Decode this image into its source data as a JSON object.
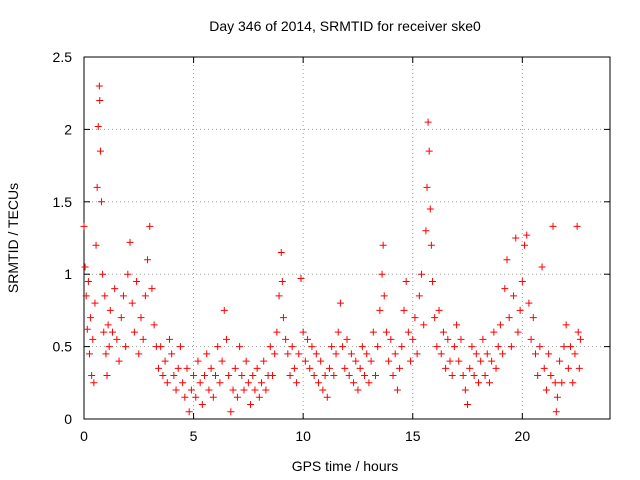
{
  "chart_data": {
    "type": "scatter",
    "title": "Day 346 of 2014, SRMTID for receiver ske0",
    "xlabel": "GPS time / hours",
    "ylabel": "SRMTID / TECUs",
    "xlim": [
      0,
      24
    ],
    "ylim": [
      0,
      2.5
    ],
    "xticks": [
      0,
      5,
      10,
      15,
      20
    ],
    "xtick_labels": [
      "0",
      "5",
      "10",
      "15",
      "20"
    ],
    "yticks": [
      0,
      0.5,
      1,
      1.5,
      2,
      2.5
    ],
    "ytick_labels": [
      "0",
      "0.5",
      "1",
      "1.5",
      "2",
      "2.5"
    ],
    "grid": true,
    "marker": "+",
    "series": [
      {
        "name": "SRMTID",
        "color": "#ff0000",
        "points": [
          [
            0.0,
            1.33
          ],
          [
            0.05,
            1.05
          ],
          [
            0.1,
            0.85
          ],
          [
            0.15,
            0.62
          ],
          [
            0.2,
            0.95
          ],
          [
            0.25,
            0.45
          ],
          [
            0.3,
            0.7
          ],
          [
            0.35,
            0.3
          ],
          [
            0.4,
            0.55
          ],
          [
            0.45,
            0.25
          ],
          [
            0.5,
            0.8
          ],
          [
            0.55,
            1.2
          ],
          [
            0.6,
            1.6
          ],
          [
            0.65,
            2.02
          ],
          [
            0.7,
            2.3
          ],
          [
            0.72,
            2.2
          ],
          [
            0.75,
            1.85
          ],
          [
            0.8,
            1.5
          ],
          [
            0.85,
            1.0
          ],
          [
            0.9,
            0.6
          ],
          [
            0.95,
            0.85
          ],
          [
            1.0,
            0.45
          ],
          [
            1.05,
            0.3
          ],
          [
            1.1,
            0.65
          ],
          [
            1.15,
            0.5
          ],
          [
            1.2,
            0.75
          ],
          [
            1.3,
            0.6
          ],
          [
            1.4,
            0.9
          ],
          [
            1.5,
            0.55
          ],
          [
            1.6,
            0.4
          ],
          [
            1.7,
            0.7
          ],
          [
            1.8,
            0.85
          ],
          [
            1.9,
            0.5
          ],
          [
            2.0,
            1.0
          ],
          [
            2.1,
            1.22
          ],
          [
            2.2,
            0.8
          ],
          [
            2.3,
            0.6
          ],
          [
            2.4,
            0.95
          ],
          [
            2.5,
            0.45
          ],
          [
            2.6,
            0.7
          ],
          [
            2.7,
            0.55
          ],
          [
            2.8,
            0.85
          ],
          [
            2.9,
            1.1
          ],
          [
            3.0,
            1.33
          ],
          [
            3.1,
            0.9
          ],
          [
            3.2,
            0.65
          ],
          [
            3.3,
            0.5
          ],
          [
            3.4,
            0.35
          ],
          [
            3.5,
            0.5
          ],
          [
            3.6,
            0.3
          ],
          [
            3.7,
            0.4
          ],
          [
            3.8,
            0.25
          ],
          [
            3.9,
            0.55
          ],
          [
            4.0,
            0.45
          ],
          [
            4.1,
            0.3
          ],
          [
            4.2,
            0.2
          ],
          [
            4.3,
            0.35
          ],
          [
            4.4,
            0.5
          ],
          [
            4.5,
            0.25
          ],
          [
            4.6,
            0.15
          ],
          [
            4.7,
            0.35
          ],
          [
            4.8,
            0.05
          ],
          [
            4.9,
            0.2
          ],
          [
            5.0,
            0.3
          ],
          [
            5.1,
            0.15
          ],
          [
            5.2,
            0.4
          ],
          [
            5.3,
            0.25
          ],
          [
            5.4,
            0.1
          ],
          [
            5.5,
            0.3
          ],
          [
            5.6,
            0.45
          ],
          [
            5.7,
            0.2
          ],
          [
            5.8,
            0.35
          ],
          [
            5.9,
            0.15
          ],
          [
            6.0,
            0.3
          ],
          [
            6.1,
            0.5
          ],
          [
            6.2,
            0.25
          ],
          [
            6.3,
            0.4
          ],
          [
            6.4,
            0.75
          ],
          [
            6.5,
            0.55
          ],
          [
            6.6,
            0.3
          ],
          [
            6.7,
            0.05
          ],
          [
            6.8,
            0.2
          ],
          [
            6.9,
            0.35
          ],
          [
            7.0,
            0.15
          ],
          [
            7.1,
            0.5
          ],
          [
            7.2,
            0.3
          ],
          [
            7.3,
            0.2
          ],
          [
            7.4,
            0.4
          ],
          [
            7.5,
            0.25
          ],
          [
            7.6,
            0.1
          ],
          [
            7.7,
            0.3
          ],
          [
            7.8,
            0.2
          ],
          [
            7.9,
            0.35
          ],
          [
            8.0,
            0.15
          ],
          [
            8.1,
            0.25
          ],
          [
            8.2,
            0.4
          ],
          [
            8.3,
            0.2
          ],
          [
            8.4,
            0.3
          ],
          [
            8.5,
            0.5
          ],
          [
            8.6,
            0.3
          ],
          [
            8.7,
            0.45
          ],
          [
            8.8,
            0.6
          ],
          [
            8.9,
            0.85
          ],
          [
            9.0,
            1.15
          ],
          [
            9.05,
            0.95
          ],
          [
            9.1,
            0.7
          ],
          [
            9.2,
            0.55
          ],
          [
            9.3,
            0.45
          ],
          [
            9.4,
            0.3
          ],
          [
            9.5,
            0.5
          ],
          [
            9.6,
            0.35
          ],
          [
            9.7,
            0.25
          ],
          [
            9.8,
            0.45
          ],
          [
            9.9,
            0.97
          ],
          [
            10.0,
            0.6
          ],
          [
            10.1,
            0.4
          ],
          [
            10.2,
            0.55
          ],
          [
            10.3,
            0.35
          ],
          [
            10.4,
            0.5
          ],
          [
            10.5,
            0.3
          ],
          [
            10.6,
            0.45
          ],
          [
            10.7,
            0.25
          ],
          [
            10.8,
            0.4
          ],
          [
            10.9,
            0.2
          ],
          [
            11.0,
            0.3
          ],
          [
            11.1,
            0.15
          ],
          [
            11.2,
            0.35
          ],
          [
            11.3,
            0.5
          ],
          [
            11.4,
            0.3
          ],
          [
            11.5,
            0.45
          ],
          [
            11.6,
            0.6
          ],
          [
            11.7,
            0.8
          ],
          [
            11.8,
            0.5
          ],
          [
            11.9,
            0.35
          ],
          [
            12.0,
            0.55
          ],
          [
            12.1,
            0.3
          ],
          [
            12.2,
            0.45
          ],
          [
            12.3,
            0.25
          ],
          [
            12.4,
            0.4
          ],
          [
            12.5,
            0.2
          ],
          [
            12.6,
            0.35
          ],
          [
            12.7,
            0.5
          ],
          [
            12.8,
            0.3
          ],
          [
            12.9,
            0.45
          ],
          [
            13.0,
            0.25
          ],
          [
            13.1,
            0.4
          ],
          [
            13.2,
            0.6
          ],
          [
            13.3,
            0.3
          ],
          [
            13.4,
            0.5
          ],
          [
            13.5,
            0.75
          ],
          [
            13.6,
            1.0
          ],
          [
            13.65,
            1.2
          ],
          [
            13.7,
            0.85
          ],
          [
            13.8,
            0.6
          ],
          [
            13.9,
            0.4
          ],
          [
            14.0,
            0.55
          ],
          [
            14.1,
            0.3
          ],
          [
            14.2,
            0.45
          ],
          [
            14.3,
            0.2
          ],
          [
            14.4,
            0.35
          ],
          [
            14.5,
            0.5
          ],
          [
            14.6,
            0.75
          ],
          [
            14.7,
            0.95
          ],
          [
            14.8,
            0.6
          ],
          [
            14.9,
            0.4
          ],
          [
            15.0,
            0.55
          ],
          [
            15.1,
            0.7
          ],
          [
            15.2,
            0.45
          ],
          [
            15.3,
            0.85
          ],
          [
            15.4,
            1.0
          ],
          [
            15.5,
            0.65
          ],
          [
            15.6,
            1.3
          ],
          [
            15.65,
            1.6
          ],
          [
            15.7,
            2.05
          ],
          [
            15.75,
            1.85
          ],
          [
            15.8,
            1.45
          ],
          [
            15.85,
            1.2
          ],
          [
            15.9,
            0.95
          ],
          [
            16.0,
            0.7
          ],
          [
            16.1,
            0.5
          ],
          [
            16.2,
            0.75
          ],
          [
            16.3,
            0.45
          ],
          [
            16.4,
            0.6
          ],
          [
            16.5,
            0.35
          ],
          [
            16.6,
            0.55
          ],
          [
            16.7,
            0.4
          ],
          [
            16.8,
            0.3
          ],
          [
            16.9,
            0.5
          ],
          [
            17.0,
            0.65
          ],
          [
            17.1,
            0.4
          ],
          [
            17.2,
            0.55
          ],
          [
            17.3,
            0.3
          ],
          [
            17.4,
            0.2
          ],
          [
            17.5,
            0.1
          ],
          [
            17.6,
            0.35
          ],
          [
            17.7,
            0.5
          ],
          [
            17.8,
            0.3
          ],
          [
            17.9,
            0.45
          ],
          [
            18.0,
            0.25
          ],
          [
            18.1,
            0.4
          ],
          [
            18.2,
            0.55
          ],
          [
            18.3,
            0.3
          ],
          [
            18.4,
            0.45
          ],
          [
            18.5,
            0.25
          ],
          [
            18.6,
            0.4
          ],
          [
            18.7,
            0.6
          ],
          [
            18.8,
            0.35
          ],
          [
            18.9,
            0.5
          ],
          [
            19.0,
            0.65
          ],
          [
            19.1,
            0.45
          ],
          [
            19.2,
            0.9
          ],
          [
            19.3,
            1.1
          ],
          [
            19.4,
            0.7
          ],
          [
            19.5,
            0.5
          ],
          [
            19.6,
            0.85
          ],
          [
            19.7,
            1.25
          ],
          [
            19.8,
            0.6
          ],
          [
            19.9,
            0.75
          ],
          [
            20.0,
            0.95
          ],
          [
            20.1,
            1.2
          ],
          [
            20.2,
            1.27
          ],
          [
            20.3,
            0.8
          ],
          [
            20.4,
            0.55
          ],
          [
            20.5,
            0.7
          ],
          [
            20.6,
            0.45
          ],
          [
            20.7,
            0.3
          ],
          [
            20.8,
            0.5
          ],
          [
            20.9,
            1.05
          ],
          [
            21.0,
            0.35
          ],
          [
            21.1,
            0.2
          ],
          [
            21.2,
            0.45
          ],
          [
            21.3,
            0.3
          ],
          [
            21.4,
            1.33
          ],
          [
            21.5,
            0.25
          ],
          [
            21.55,
            0.05
          ],
          [
            21.6,
            0.15
          ],
          [
            21.7,
            0.4
          ],
          [
            21.8,
            0.25
          ],
          [
            21.9,
            0.5
          ],
          [
            22.0,
            0.65
          ],
          [
            22.1,
            0.35
          ],
          [
            22.2,
            0.5
          ],
          [
            22.3,
            0.25
          ],
          [
            22.4,
            0.45
          ],
          [
            22.5,
            1.33
          ],
          [
            22.55,
            0.6
          ],
          [
            22.6,
            0.35
          ],
          [
            22.65,
            0.55
          ]
        ]
      }
    ]
  }
}
